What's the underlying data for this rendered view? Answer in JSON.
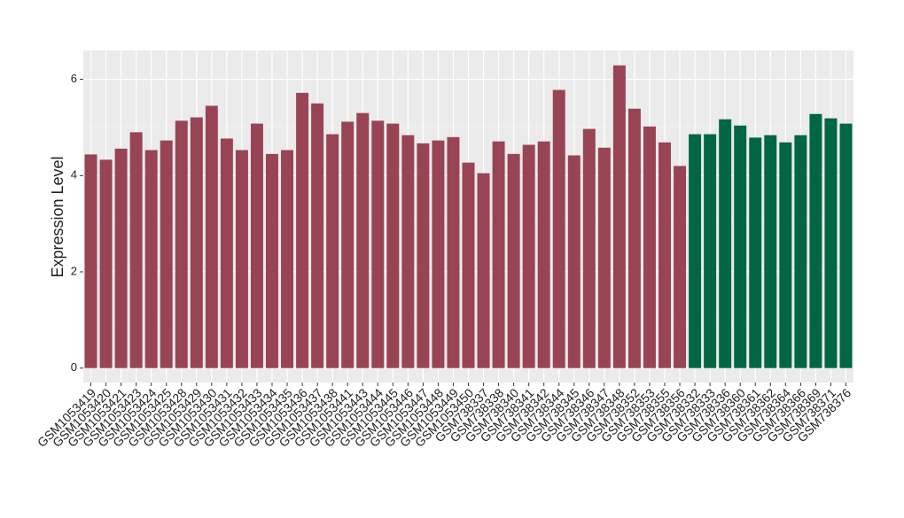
{
  "chart_data": {
    "type": "bar",
    "y_label": "Expression Level",
    "categories": [
      "GSM1053419",
      "GSM1053420",
      "GSM1053421",
      "GSM1053423",
      "GSM1053424",
      "GSM1053425",
      "GSM1053428",
      "GSM1053429",
      "GSM1053430",
      "GSM1053431",
      "GSM1053432",
      "GSM1053433",
      "GSM1053434",
      "GSM1053435",
      "GSM1053436",
      "GSM1053437",
      "GSM1053438",
      "GSM1053441",
      "GSM1053443",
      "GSM1053444",
      "GSM1053445",
      "GSM1053446",
      "GSM1053447",
      "GSM1053448",
      "GSM1053449",
      "GSM1053450",
      "GSM738337",
      "GSM738338",
      "GSM738340",
      "GSM738341",
      "GSM738342",
      "GSM738344",
      "GSM738345",
      "GSM738346",
      "GSM738347",
      "GSM738348",
      "GSM738352",
      "GSM738353",
      "GSM738355",
      "GSM738356",
      "GSM738332",
      "GSM738333",
      "GSM738336",
      "GSM738360",
      "GSM738361",
      "GSM738362",
      "GSM738364",
      "GSM738366",
      "GSM738369",
      "GSM738371",
      "GSM738376"
    ],
    "values": [
      4.44,
      4.33,
      4.56,
      4.9,
      4.53,
      4.73,
      5.14,
      5.21,
      5.45,
      4.77,
      4.53,
      5.08,
      4.45,
      4.53,
      5.72,
      5.5,
      4.86,
      5.12,
      5.3,
      5.14,
      5.08,
      4.84,
      4.67,
      4.73,
      4.8,
      4.27,
      4.05,
      4.71,
      4.45,
      4.64,
      4.71,
      5.78,
      4.42,
      4.97,
      4.58,
      6.29,
      5.39,
      5.02,
      4.69,
      4.2,
      4.86,
      4.86,
      5.17,
      5.04,
      4.79,
      4.84,
      4.69,
      4.84,
      5.28,
      5.19,
      5.08
    ],
    "colors": [
      "#994455",
      "#994455",
      "#994455",
      "#994455",
      "#994455",
      "#994455",
      "#994455",
      "#994455",
      "#994455",
      "#994455",
      "#994455",
      "#994455",
      "#994455",
      "#994455",
      "#994455",
      "#994455",
      "#994455",
      "#994455",
      "#994455",
      "#994455",
      "#994455",
      "#994455",
      "#994455",
      "#994455",
      "#994455",
      "#994455",
      "#994455",
      "#994455",
      "#994455",
      "#994455",
      "#994455",
      "#994455",
      "#994455",
      "#994455",
      "#994455",
      "#994455",
      "#994455",
      "#994455",
      "#994455",
      "#994455",
      "#006644",
      "#006644",
      "#006644",
      "#006644",
      "#006644",
      "#006644",
      "#006644",
      "#006644",
      "#006644",
      "#006644",
      "#006644"
    ],
    "ylim": [
      -0.3,
      6.6
    ],
    "yticks": [
      0,
      2,
      4,
      6
    ],
    "grid": true
  }
}
